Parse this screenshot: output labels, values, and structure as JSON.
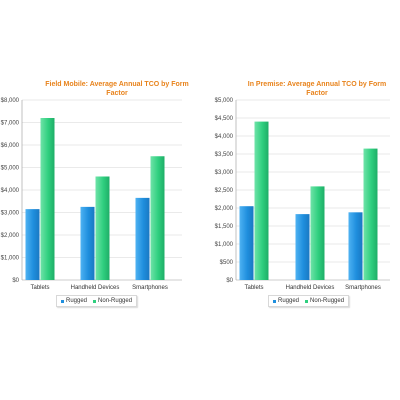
{
  "colors": {
    "rugged": "#1f8fde",
    "non_rugged": "#2fcf7f",
    "title": "#e8831c"
  },
  "chart_data": [
    {
      "type": "bar",
      "title": "Field Mobile: Average Annual TCO by Form Factor",
      "categories": [
        "Tablets",
        "Handheld Devices",
        "Smartphones"
      ],
      "series": [
        {
          "name": "Rugged",
          "values": [
            3150,
            3250,
            3650
          ]
        },
        {
          "name": "Non-Rugged",
          "values": [
            7200,
            4600,
            5500
          ]
        }
      ],
      "ylim": [
        0,
        8000
      ],
      "yticks": [
        "$0",
        "$1,000",
        "$2,000",
        "$3,000",
        "$4,000",
        "$5,000",
        "$6,000",
        "$7,000",
        "$8,000"
      ],
      "legend": [
        "Rugged",
        "Non-Rugged"
      ],
      "legend_position": "bottom"
    },
    {
      "type": "bar",
      "title": "In Premise: Average Annual TCO by Form Factor",
      "categories": [
        "Tablets",
        "Handheld Devices",
        "Smartphones"
      ],
      "series": [
        {
          "name": "Rugged",
          "values": [
            2050,
            1830,
            1880
          ]
        },
        {
          "name": "Non-Rugged",
          "values": [
            4400,
            2600,
            3650
          ]
        }
      ],
      "ylim": [
        0,
        5000
      ],
      "yticks": [
        "$0",
        "$500",
        "$1,000",
        "$1,500",
        "$2,000",
        "$2,500",
        "$3,000",
        "$3,500",
        "$4,000",
        "$4,500",
        "$5,000"
      ],
      "legend": [
        "Rugged",
        "Non-Rugged"
      ],
      "legend_position": "bottom"
    }
  ]
}
